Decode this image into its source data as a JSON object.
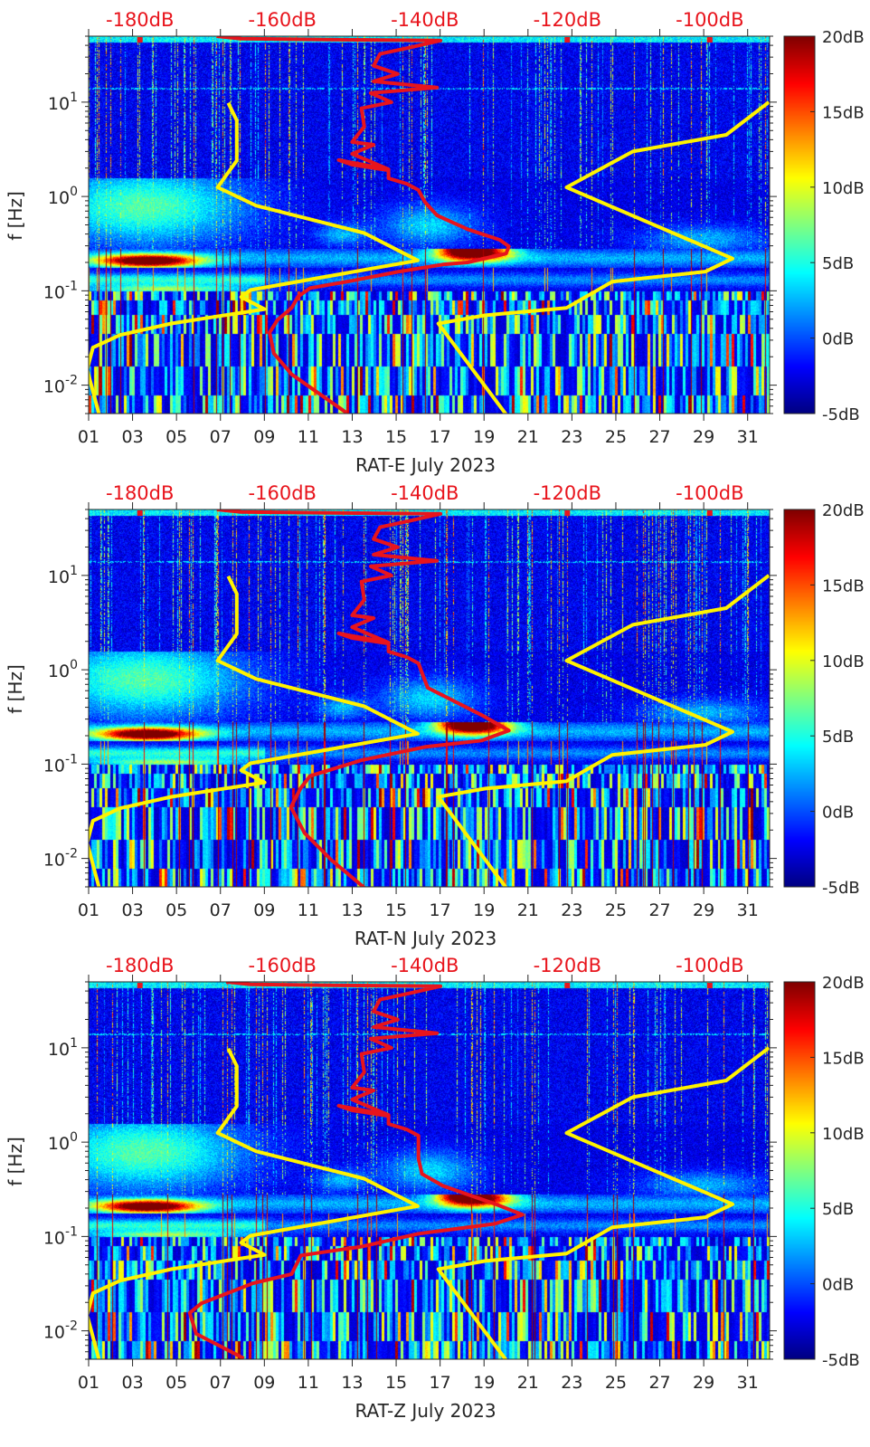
{
  "chart_data": {
    "type": "heatmap",
    "title": "",
    "x_range": [
      1,
      32
    ],
    "y_range": [
      0.005,
      50
    ],
    "y_scale": "log",
    "ylabel": "f [Hz]",
    "x_ticks": {
      "values": [
        1,
        3,
        5,
        7,
        9,
        11,
        13,
        15,
        17,
        19,
        21,
        23,
        25,
        27,
        29,
        31
      ],
      "labels": [
        "01",
        "03",
        "05",
        "07",
        "09",
        "11",
        "13",
        "15",
        "17",
        "19",
        "21",
        "23",
        "25",
        "27",
        "29",
        "31"
      ]
    },
    "y_ticks": [
      {
        "value": 10,
        "base": "10",
        "exp": "1"
      },
      {
        "value": 1,
        "base": "10",
        "exp": "0"
      },
      {
        "value": 0.1,
        "base": "10",
        "exp": "-1"
      },
      {
        "value": 0.01,
        "base": "10",
        "exp": "-2"
      }
    ],
    "top_axis": {
      "range": [
        -187.2,
        -91.6
      ],
      "values": [
        -180,
        -160,
        -140,
        -120,
        -100
      ],
      "labels": [
        "-180dB",
        "-160dB",
        "-140dB",
        "-120dB",
        "-100dB"
      ],
      "color": "#e8141c"
    },
    "top_markers_db": [
      -180,
      -120,
      -100
    ],
    "colorbar": {
      "colormap": "jet",
      "range": [
        -5,
        20
      ],
      "values": [
        20,
        15,
        10,
        5,
        0,
        -5
      ],
      "labels": [
        "20dB",
        "15dB",
        "10dB",
        "5dB",
        "0dB",
        "-5dB"
      ]
    },
    "model_curves": [
      {
        "name": "low-noise-model",
        "color": "#fff200",
        "points_db_hz": [
          [
            -185.7,
            0.0048
          ],
          [
            -187.4,
            0.0146
          ],
          [
            -186.6,
            0.025
          ],
          [
            -182.8,
            0.034
          ],
          [
            -175.6,
            0.045
          ],
          [
            -162.5,
            0.064
          ],
          [
            -165.8,
            0.086
          ],
          [
            -164.5,
            0.102
          ],
          [
            -141.0,
            0.21
          ],
          [
            -148.5,
            0.41
          ],
          [
            -163.7,
            0.8
          ],
          [
            -169.1,
            1.25
          ],
          [
            -166.4,
            2.4
          ],
          [
            -166.4,
            6.4
          ],
          [
            -167.6,
            9.8
          ]
        ]
      },
      {
        "name": "high-noise-model",
        "color": "#fff200",
        "points_db_hz": [
          [
            -128.6,
            0.0049
          ],
          [
            -138.1,
            0.045
          ],
          [
            -131.5,
            0.055
          ],
          [
            -120.1,
            0.066
          ],
          [
            -113.7,
            0.125
          ],
          [
            -100.6,
            0.16
          ],
          [
            -96.8,
            0.22
          ],
          [
            -120.1,
            1.25
          ],
          [
            -110.8,
            3.0
          ],
          [
            -97.7,
            4.5
          ],
          [
            -91.7,
            10
          ]
        ]
      }
    ],
    "panels": [
      {
        "xlabel": "RAT-E July 2023",
        "station_curve_color": "#e8141c",
        "station_curve_db_hz": [
          [
            -151.0,
            0.0051
          ],
          [
            -158.7,
            0.013
          ],
          [
            -161.2,
            0.0217
          ],
          [
            -161.8,
            0.036
          ],
          [
            -160.7,
            0.049
          ],
          [
            -158.7,
            0.066
          ],
          [
            -157.8,
            0.087
          ],
          [
            -156.1,
            0.107
          ],
          [
            -150.2,
            0.128
          ],
          [
            -143.8,
            0.159
          ],
          [
            -137.5,
            0.19
          ],
          [
            -134.0,
            0.2
          ],
          [
            -128.6,
            0.248
          ],
          [
            -128.2,
            0.296
          ],
          [
            -129.5,
            0.347
          ],
          [
            -134.0,
            0.45
          ],
          [
            -138.3,
            0.63
          ],
          [
            -140.0,
            0.875
          ],
          [
            -140.9,
            1.17
          ],
          [
            -142.5,
            1.36
          ],
          [
            -145.1,
            1.56
          ],
          [
            -145.1,
            1.9
          ],
          [
            -150.2,
            2.17
          ],
          [
            -152.1,
            2.43
          ],
          [
            -145.1,
            1.94
          ],
          [
            -150.2,
            2.83
          ],
          [
            -147.2,
            3.53
          ],
          [
            -150.2,
            3.78
          ],
          [
            -148.5,
            5.5
          ],
          [
            -148.9,
            8.6
          ],
          [
            -144.7,
            10
          ],
          [
            -147.6,
            12.5
          ],
          [
            -138.3,
            14.3
          ],
          [
            -147.2,
            16.6
          ],
          [
            -143.8,
            19.9
          ],
          [
            -147.2,
            24.3
          ],
          [
            -146.3,
            32.4
          ],
          [
            -142.2,
            37.8
          ],
          [
            -137.8,
            45
          ],
          [
            -153.1,
            46
          ],
          [
            -165.8,
            47
          ],
          [
            -169.2,
            50
          ]
        ]
      },
      {
        "xlabel": "RAT-N July 2023",
        "station_curve_color": "#e8141c",
        "station_curve_db_hz": [
          [
            -148.5,
            0.0049
          ],
          [
            -153.1,
            0.0096
          ],
          [
            -156.9,
            0.0186
          ],
          [
            -158.8,
            0.035
          ],
          [
            -157.4,
            0.056
          ],
          [
            -156.1,
            0.075
          ],
          [
            -148.9,
            0.11
          ],
          [
            -140.0,
            0.152
          ],
          [
            -132.0,
            0.178
          ],
          [
            -128.2,
            0.227
          ],
          [
            -132.0,
            0.33
          ],
          [
            -139.6,
            0.645
          ],
          [
            -140.9,
            1.17
          ],
          [
            -142.5,
            1.36
          ],
          [
            -145.1,
            1.56
          ],
          [
            -145.1,
            1.9
          ],
          [
            -150.2,
            2.17
          ],
          [
            -152.1,
            2.43
          ],
          [
            -145.1,
            1.94
          ],
          [
            -150.2,
            2.83
          ],
          [
            -147.2,
            3.53
          ],
          [
            -150.2,
            3.78
          ],
          [
            -148.5,
            5.5
          ],
          [
            -148.9,
            8.6
          ],
          [
            -144.7,
            10
          ],
          [
            -147.6,
            12.5
          ],
          [
            -138.3,
            14.3
          ],
          [
            -147.2,
            16.6
          ],
          [
            -143.8,
            19.9
          ],
          [
            -147.2,
            24.3
          ],
          [
            -146.3,
            32.4
          ],
          [
            -142.2,
            37.8
          ],
          [
            -137.8,
            45
          ],
          [
            -153.1,
            46
          ],
          [
            -165.8,
            47
          ],
          [
            -169.2,
            50
          ]
        ]
      },
      {
        "xlabel": "RAT-Z July 2023",
        "station_curve_color": "#e8141c",
        "station_curve_db_hz": [
          [
            -165.4,
            0.0051
          ],
          [
            -172.1,
            0.0093
          ],
          [
            -173.0,
            0.0155
          ],
          [
            -171.4,
            0.0195
          ],
          [
            -164.1,
            0.032
          ],
          [
            -158.7,
            0.04
          ],
          [
            -157.4,
            0.063
          ],
          [
            -148.9,
            0.078
          ],
          [
            -140.9,
            0.107
          ],
          [
            -130.2,
            0.136
          ],
          [
            -126.3,
            0.17
          ],
          [
            -130.2,
            0.222
          ],
          [
            -137.5,
            0.345
          ],
          [
            -140.4,
            0.46
          ],
          [
            -140.9,
            0.67
          ],
          [
            -140.9,
            1.17
          ],
          [
            -142.5,
            1.36
          ],
          [
            -145.1,
            1.56
          ],
          [
            -145.1,
            1.9
          ],
          [
            -150.2,
            2.17
          ],
          [
            -152.1,
            2.43
          ],
          [
            -145.1,
            1.94
          ],
          [
            -150.2,
            2.83
          ],
          [
            -147.2,
            3.53
          ],
          [
            -150.2,
            3.78
          ],
          [
            -148.5,
            5.5
          ],
          [
            -148.9,
            8.6
          ],
          [
            -144.7,
            10
          ],
          [
            -147.6,
            12.5
          ],
          [
            -138.3,
            14.3
          ],
          [
            -147.2,
            16.6
          ],
          [
            -143.8,
            19.9
          ],
          [
            -147.2,
            24.3
          ],
          [
            -146.3,
            32.4
          ],
          [
            -142.2,
            37.8
          ],
          [
            -137.8,
            45
          ],
          [
            -153.1,
            46
          ],
          [
            -164.5,
            47
          ],
          [
            -167.9,
            50
          ]
        ]
      }
    ]
  }
}
